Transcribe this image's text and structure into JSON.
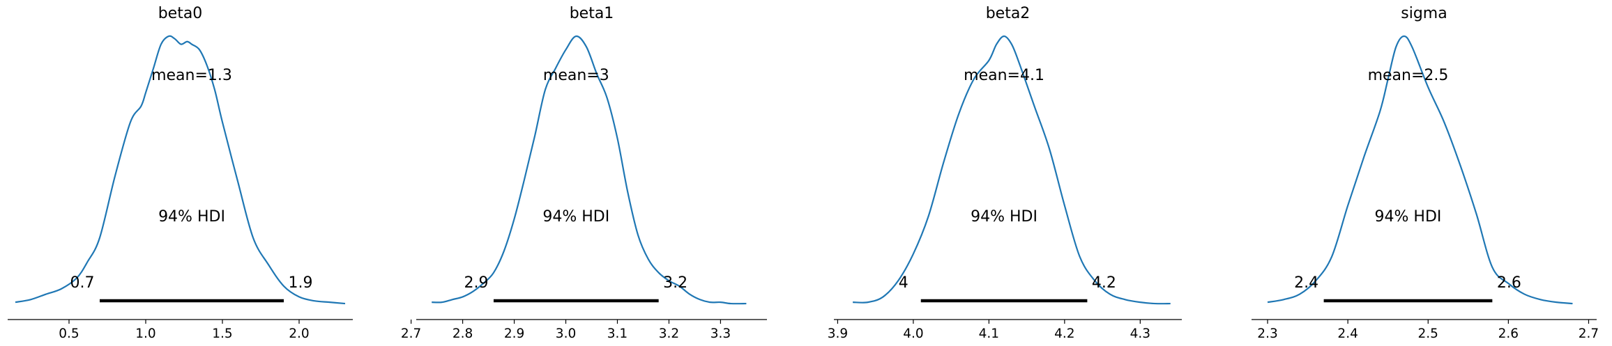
{
  "chart_data": [
    {
      "type": "line",
      "title": "beta0",
      "mean_label": "mean=1.3",
      "hdi_label": "94% HDI",
      "hdi": [
        0.7,
        1.9
      ],
      "hdi_low_label": "0.7",
      "hdi_high_label": "1.9",
      "xlim": [
        0.1,
        2.35
      ],
      "xticks": [
        0.5,
        1.0,
        1.5,
        2.0
      ],
      "xtick_labels": [
        "0.5",
        "1.0",
        "1.5",
        "2.0"
      ],
      "density_x": [
        0.15,
        0.25,
        0.35,
        0.45,
        0.55,
        0.62,
        0.7,
        0.8,
        0.9,
        0.97,
        1.0,
        1.05,
        1.1,
        1.15,
        1.19,
        1.23,
        1.27,
        1.3,
        1.35,
        1.4,
        1.45,
        1.5,
        1.6,
        1.7,
        1.8,
        1.9,
        2.0,
        2.1,
        2.2,
        2.3
      ],
      "density_y": [
        0.01,
        0.02,
        0.04,
        0.06,
        0.1,
        0.16,
        0.25,
        0.48,
        0.68,
        0.74,
        0.79,
        0.88,
        0.97,
        1.0,
        0.99,
        0.97,
        0.98,
        0.97,
        0.95,
        0.89,
        0.8,
        0.68,
        0.46,
        0.25,
        0.15,
        0.07,
        0.03,
        0.015,
        0.01,
        0.005
      ]
    },
    {
      "type": "line",
      "title": "beta1",
      "mean_label": "mean=3",
      "hdi_label": "94% HDI",
      "hdi": [
        2.86,
        3.18
      ],
      "hdi_low_label": "2.9",
      "hdi_high_label": "3.2",
      "xlim": [
        2.71,
        3.39
      ],
      "xticks": [
        2.7,
        2.8,
        2.9,
        3.0,
        3.1,
        3.2,
        3.3
      ],
      "xtick_labels": [
        "2.7",
        "2.8",
        "2.9",
        "3.0",
        "3.1",
        "3.2",
        "3.3"
      ],
      "density_x": [
        2.74,
        2.76,
        2.78,
        2.8,
        2.82,
        2.84,
        2.86,
        2.88,
        2.9,
        2.92,
        2.94,
        2.96,
        2.98,
        3.0,
        3.02,
        3.04,
        3.06,
        3.08,
        3.1,
        3.12,
        3.14,
        3.16,
        3.18,
        3.2,
        3.22,
        3.24,
        3.26,
        3.28,
        3.3,
        3.32,
        3.35
      ],
      "density_y": [
        0.01,
        0.01,
        0.02,
        0.03,
        0.05,
        0.08,
        0.12,
        0.2,
        0.32,
        0.47,
        0.63,
        0.8,
        0.88,
        0.95,
        1.0,
        0.96,
        0.86,
        0.77,
        0.62,
        0.42,
        0.26,
        0.17,
        0.12,
        0.09,
        0.07,
        0.04,
        0.02,
        0.01,
        0.01,
        0.005,
        0.005
      ]
    },
    {
      "type": "line",
      "title": "beta2",
      "mean_label": "mean=4.1",
      "hdi_label": "94% HDI",
      "hdi": [
        4.01,
        4.23
      ],
      "hdi_low_label": "4",
      "hdi_high_label": "4.2",
      "xlim": [
        3.895,
        4.355
      ],
      "xticks": [
        3.9,
        4.0,
        4.1,
        4.2,
        4.3
      ],
      "xtick_labels": [
        "3.9",
        "4.0",
        "4.1",
        "4.2",
        "4.3"
      ],
      "density_x": [
        3.92,
        3.94,
        3.96,
        3.98,
        4.0,
        4.02,
        4.04,
        4.06,
        4.08,
        4.1,
        4.11,
        4.12,
        4.13,
        4.14,
        4.16,
        4.18,
        4.2,
        4.22,
        4.24,
        4.26,
        4.28,
        4.3,
        4.32,
        4.34
      ],
      "density_y": [
        0.01,
        0.01,
        0.03,
        0.09,
        0.19,
        0.33,
        0.53,
        0.71,
        0.84,
        0.91,
        0.97,
        1.0,
        0.97,
        0.9,
        0.74,
        0.58,
        0.37,
        0.18,
        0.09,
        0.04,
        0.02,
        0.01,
        0.005,
        0.005
      ]
    },
    {
      "type": "line",
      "title": "sigma",
      "mean_label": "mean=2.5",
      "hdi_label": "94% HDI",
      "hdi": [
        2.37,
        2.58
      ],
      "hdi_low_label": "2.4",
      "hdi_high_label": "2.6",
      "xlim": [
        2.28,
        2.71
      ],
      "xticks": [
        2.3,
        2.4,
        2.5,
        2.6,
        2.7
      ],
      "xtick_labels": [
        "2.3",
        "2.4",
        "2.5",
        "2.6",
        "2.7"
      ],
      "density_x": [
        2.3,
        2.32,
        2.34,
        2.36,
        2.38,
        2.4,
        2.42,
        2.44,
        2.45,
        2.46,
        2.47,
        2.48,
        2.5,
        2.52,
        2.54,
        2.56,
        2.58,
        2.6,
        2.62,
        2.64,
        2.66,
        2.68
      ],
      "density_y": [
        0.01,
        0.02,
        0.04,
        0.09,
        0.18,
        0.37,
        0.55,
        0.72,
        0.84,
        0.96,
        1.0,
        0.96,
        0.81,
        0.68,
        0.52,
        0.34,
        0.14,
        0.08,
        0.04,
        0.02,
        0.01,
        0.005
      ]
    }
  ],
  "colors": {
    "density_line": "#1f77b4",
    "hdi_bar": "#000000",
    "axis": "#000000"
  }
}
